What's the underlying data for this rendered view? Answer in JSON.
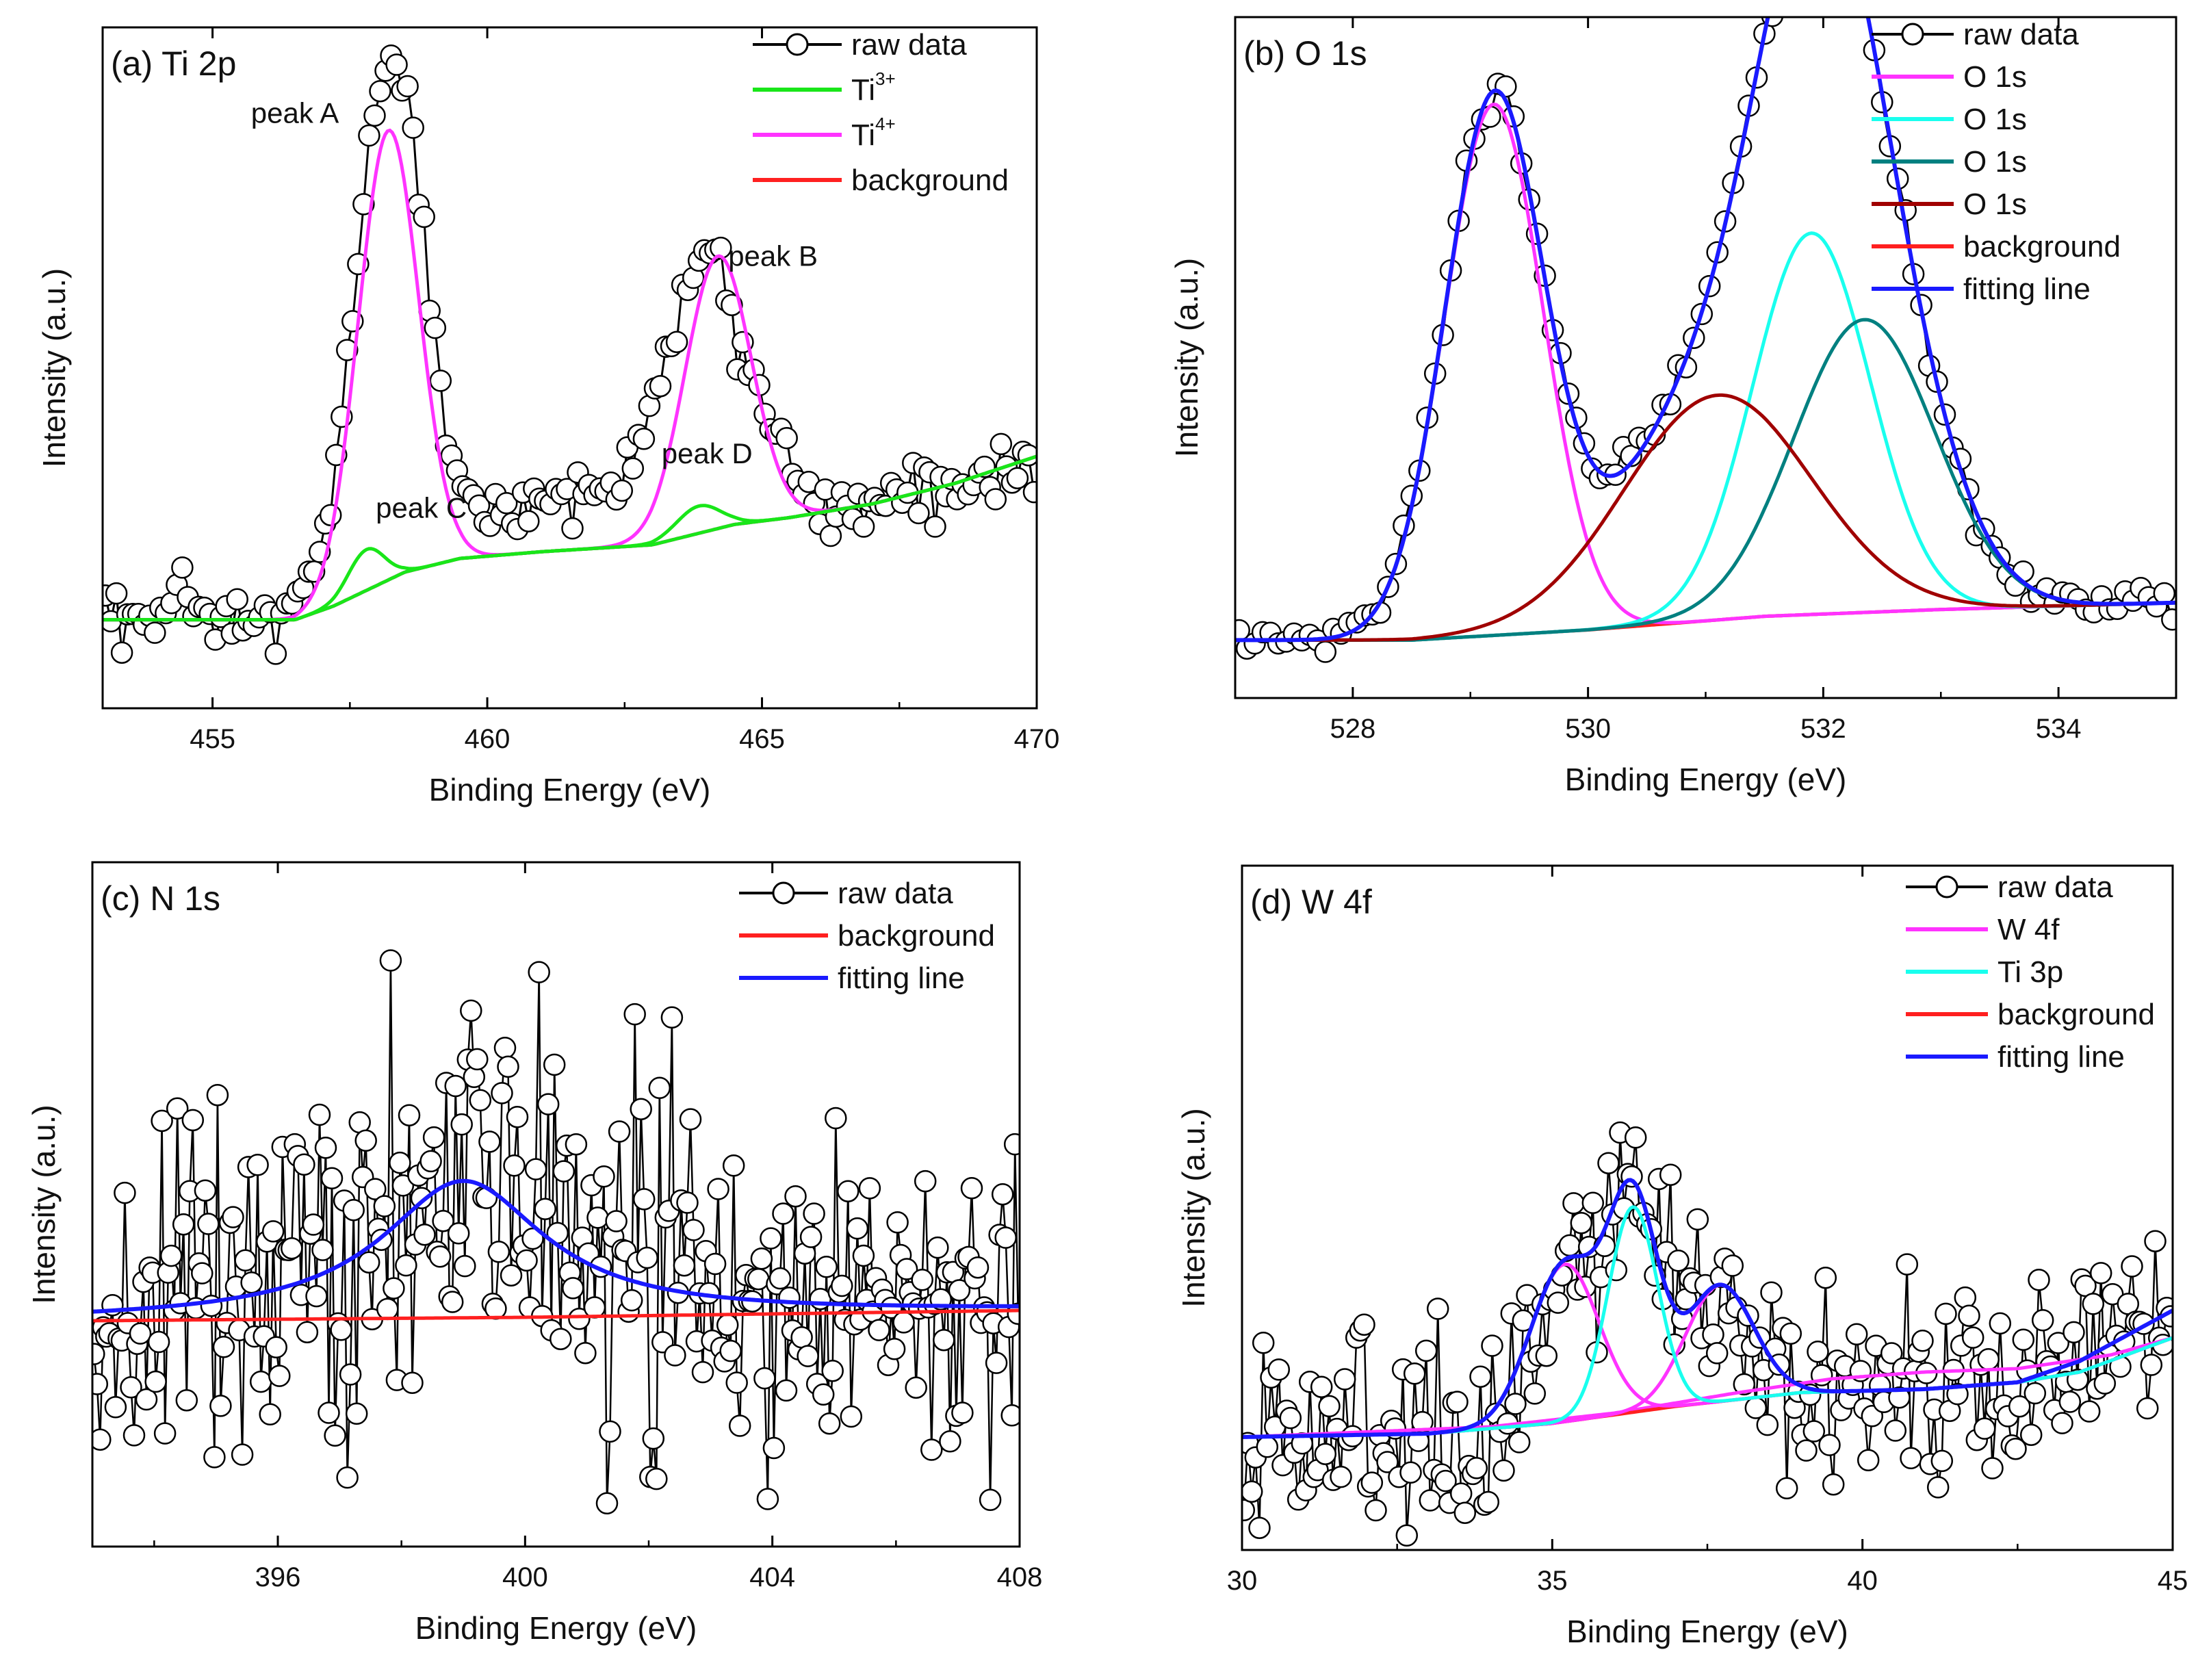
{
  "chart_data": [
    {
      "id": "a",
      "type": "line",
      "title": "(a) Ti 2p",
      "xlabel": "Binding Energy (eV)",
      "ylabel": "Intensity (a.u.)",
      "xlim": [
        453,
        470
      ],
      "ylim": [
        0,
        1.0
      ],
      "xticks": [
        455,
        460,
        465,
        470
      ],
      "grid": false,
      "legend_position": "top-right",
      "legend": [
        {
          "label": "raw data",
          "color": "#000000",
          "style": "marker"
        },
        {
          "label": "Ti",
          "sup": "3+",
          "color": "#19e619",
          "style": "line"
        },
        {
          "label": "Ti",
          "sup": "4+",
          "color": "#ff33ff",
          "style": "line"
        },
        {
          "label": "background",
          "color": "#ff2020",
          "style": "line"
        }
      ],
      "annotations": [
        {
          "text": "peak A",
          "x": 456.5,
          "y": 0.86
        },
        {
          "text": "peak B",
          "x": 465.2,
          "y": 0.65
        },
        {
          "text": "peak C",
          "x": 458.8,
          "y": 0.28
        },
        {
          "text": "peak D",
          "x": 464.0,
          "y": 0.36
        }
      ],
      "background": {
        "color": "#ff2020",
        "points": [
          [
            453,
            0.13
          ],
          [
            456.5,
            0.13
          ],
          [
            457.2,
            0.15
          ],
          [
            458.5,
            0.2
          ],
          [
            459.5,
            0.22
          ],
          [
            461,
            0.23
          ],
          [
            463,
            0.24
          ],
          [
            464.5,
            0.27
          ],
          [
            465.5,
            0.28
          ],
          [
            467,
            0.3
          ],
          [
            468.5,
            0.33
          ],
          [
            470,
            0.37
          ]
        ]
      },
      "components": [
        {
          "name": "Ti 4+",
          "color": "#ff33ff",
          "peaks": [
            {
              "center": 458.2,
              "height": 0.66,
              "sigma": 0.55
            },
            {
              "center": 464.2,
              "height": 0.4,
              "sigma": 0.6
            }
          ]
        },
        {
          "name": "Ti 3+",
          "color": "#19e619",
          "peaks": [
            {
              "center": 457.8,
              "height": 0.06,
              "sigma": 0.33
            },
            {
              "center": 463.85,
              "height": 0.04,
              "sigma": 0.4
            }
          ]
        }
      ],
      "raw": {
        "peaks": [
          {
            "center": 458.25,
            "height": 0.76,
            "sigma": 0.62
          },
          {
            "center": 464.0,
            "height": 0.38,
            "sigma": 0.8
          },
          {
            "center": 461.3,
            "height": 0.08,
            "sigma": 1.1
          }
        ],
        "noise": 0.025,
        "count": 170,
        "baseline": "background"
      }
    },
    {
      "id": "b",
      "type": "line",
      "title": "(b) O 1s",
      "xlabel": "Binding Energy (eV)",
      "ylabel": "Intensity (a.u.)",
      "xlim": [
        527,
        535
      ],
      "ylim": [
        0,
        1.0
      ],
      "xticks": [
        528,
        530,
        532,
        534
      ],
      "grid": false,
      "legend_position": "top-right",
      "legend": [
        {
          "label": "raw data",
          "color": "#000000",
          "style": "marker"
        },
        {
          "label": "O 1s",
          "color": "#ff33ff",
          "style": "line"
        },
        {
          "label": "O 1s",
          "color": "#19ffee",
          "style": "line"
        },
        {
          "label": "O 1s",
          "color": "#008080",
          "style": "line"
        },
        {
          "label": "O 1s",
          "color": "#a00000",
          "style": "line"
        },
        {
          "label": "background",
          "color": "#ff2020",
          "style": "line"
        },
        {
          "label": "fitting line",
          "color": "#1a1aff",
          "style": "line"
        }
      ],
      "annotations": [],
      "background": {
        "color": "#ff2020",
        "points": [
          [
            527,
            0.085
          ],
          [
            528.5,
            0.085
          ],
          [
            530,
            0.1
          ],
          [
            531.5,
            0.12
          ],
          [
            533,
            0.13
          ],
          [
            535,
            0.14
          ]
        ]
      },
      "components": [
        {
          "name": "O 1s (1)",
          "color": "#ff33ff",
          "peaks": [
            {
              "center": 529.2,
              "height": 0.78,
              "sigma": 0.42
            }
          ]
        },
        {
          "name": "O 1s (2)",
          "color": "#19ffee",
          "peaks": [
            {
              "center": 531.9,
              "height": 0.56,
              "sigma": 0.5
            }
          ]
        },
        {
          "name": "O 1s (3)",
          "color": "#008080",
          "peaks": [
            {
              "center": 532.35,
              "height": 0.43,
              "sigma": 0.6
            }
          ]
        },
        {
          "name": "O 1s (4)",
          "color": "#a00000",
          "peaks": [
            {
              "center": 531.1,
              "height": 0.33,
              "sigma": 0.8
            }
          ]
        }
      ],
      "fit": {
        "color": "#1a1aff"
      },
      "raw": {
        "follow": "fit",
        "noise": 0.012,
        "count": 120,
        "baseline": "background"
      }
    },
    {
      "id": "c",
      "type": "line",
      "title": "(c) N 1s",
      "xlabel": "Binding Energy (eV)",
      "ylabel": "Intensity (a.u.)",
      "xlim": [
        393,
        408
      ],
      "ylim": [
        0,
        1.0
      ],
      "xticks": [
        396,
        400,
        404,
        408
      ],
      "grid": false,
      "legend_position": "top-right",
      "legend": [
        {
          "label": "raw data",
          "color": "#000000",
          "style": "marker"
        },
        {
          "label": "background",
          "color": "#ff2020",
          "style": "line"
        },
        {
          "label": "fitting line",
          "color": "#1a1aff",
          "style": "line"
        }
      ],
      "annotations": [],
      "background": {
        "color": "#ff2020",
        "points": [
          [
            393,
            0.33
          ],
          [
            400,
            0.335
          ],
          [
            408,
            0.345
          ]
        ]
      },
      "components": [],
      "fit": {
        "color": "#1a1aff",
        "peaks": [
          {
            "center": 399.0,
            "height": 0.2,
            "sigma": 1.6,
            "lorentz": true
          }
        ]
      },
      "raw": {
        "follow": "fit",
        "noise": 0.13,
        "count": 300,
        "baseline": "background",
        "jagged": true
      }
    },
    {
      "id": "d",
      "type": "line",
      "title": "(d) W 4f",
      "xlabel": "Binding Energy (eV)",
      "ylabel": "Intensity (a.u.)",
      "xlim": [
        30,
        45
      ],
      "ylim": [
        0,
        1.0
      ],
      "xticks": [
        30,
        35,
        40,
        45
      ],
      "grid": false,
      "legend_position": "top-right",
      "legend": [
        {
          "label": "raw data",
          "color": "#000000",
          "style": "marker"
        },
        {
          "label": "W 4f",
          "color": "#ff33ff",
          "style": "line"
        },
        {
          "label": "Ti 3p",
          "color": "#19ffee",
          "style": "line"
        },
        {
          "label": "background",
          "color": "#ff2020",
          "style": "line"
        },
        {
          "label": "fitting line",
          "color": "#1a1aff",
          "style": "line"
        }
      ],
      "annotations": [],
      "background": {
        "color": "#ff2020",
        "points": [
          [
            30,
            0.165
          ],
          [
            33,
            0.17
          ],
          [
            35,
            0.185
          ],
          [
            37,
            0.21
          ],
          [
            39,
            0.23
          ],
          [
            41,
            0.235
          ],
          [
            42.5,
            0.245
          ],
          [
            43.5,
            0.26
          ],
          [
            45,
            0.31
          ]
        ]
      },
      "components": [
        {
          "name": "W 4f",
          "color": "#ff33ff",
          "peaks": [
            {
              "center": 35.2,
              "height": 0.23,
              "sigma": 0.55
            },
            {
              "center": 37.7,
              "height": 0.17,
              "sigma": 0.55
            }
          ]
        },
        {
          "name": "Ti 3p",
          "color": "#19ffee",
          "peaks": [
            {
              "center": 36.3,
              "height": 0.3,
              "sigma": 0.4
            }
          ]
        }
      ],
      "extra_background": {
        "color": "#ff33ff",
        "points": [
          [
            30,
            0.165
          ],
          [
            34,
            0.18
          ],
          [
            36,
            0.2
          ],
          [
            38,
            0.23
          ],
          [
            39.5,
            0.25
          ],
          [
            41,
            0.26
          ],
          [
            42.5,
            0.265
          ],
          [
            44,
            0.285
          ],
          [
            45,
            0.31
          ]
        ]
      },
      "fit": {
        "color": "#1a1aff",
        "extra_rise": [
          [
            42.5,
            0.0
          ],
          [
            45,
            0.04
          ]
        ]
      },
      "raw": {
        "follow": "fit",
        "noise": 0.07,
        "count": 240,
        "baseline": "background",
        "jagged": true
      }
    }
  ]
}
